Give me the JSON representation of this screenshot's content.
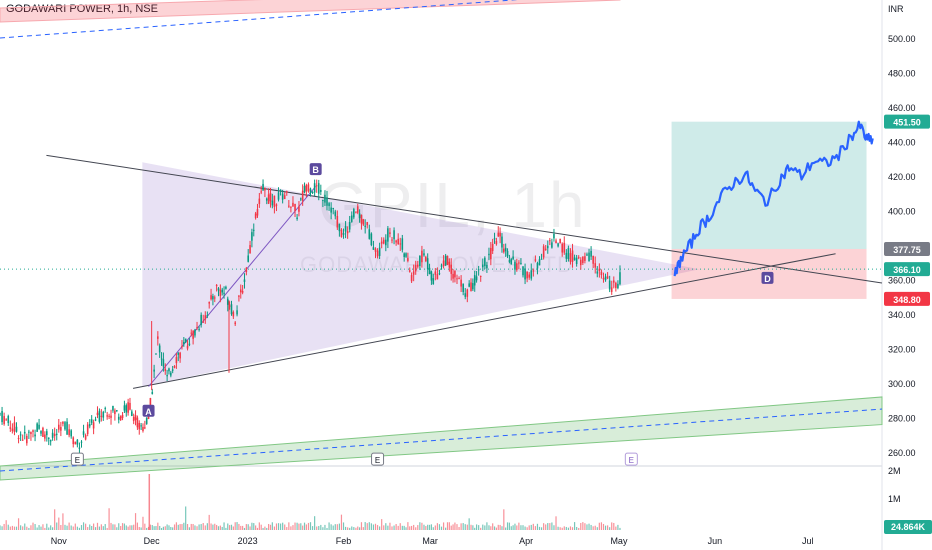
{
  "header": {
    "title": "GODAWARI POWER, 1h, NSE",
    "watermark_symbol": "GPIL, 1h",
    "watermark_name": "GODAWARI POWER LTD"
  },
  "chart_data": {
    "type": "candlestick-line",
    "currency": "INR",
    "y_ticks": [
      260,
      280,
      300,
      320,
      340,
      360,
      380,
      400,
      420,
      440,
      460,
      480,
      500
    ],
    "y_tick_labels": [
      "260.00",
      "280.00",
      "300.00",
      "320.00",
      "340.00",
      "360.00",
      "380.00",
      "400.00",
      "420.00",
      "440.00",
      "460.00",
      "480.00",
      "500.00"
    ],
    "ylim": [
      252,
      522
    ],
    "x_labels": [
      {
        "label": "Nov",
        "date": "2022-11-01"
      },
      {
        "label": "Dec",
        "date": "2022-12-01"
      },
      {
        "label": "2023",
        "date": "2023-01-01"
      },
      {
        "label": "Feb",
        "date": "2023-02-01"
      },
      {
        "label": "Mar",
        "date": "2023-03-01"
      },
      {
        "label": "Apr",
        "date": "2023-04-01"
      },
      {
        "label": "May",
        "date": "2023-05-01"
      },
      {
        "label": "Jun",
        "date": "2023-06-01"
      },
      {
        "label": "Jul",
        "date": "2023-07-01"
      }
    ],
    "price_path_historic": [
      [
        "2022-10-13",
        282
      ],
      [
        "2022-10-17",
        275
      ],
      [
        "2022-10-21",
        268
      ],
      [
        "2022-10-25",
        274
      ],
      [
        "2022-10-30",
        268
      ],
      [
        "2022-11-03",
        276
      ],
      [
        "2022-11-07",
        264
      ],
      [
        "2022-11-11",
        274
      ],
      [
        "2022-11-16",
        285
      ],
      [
        "2022-11-21",
        282
      ],
      [
        "2022-11-24",
        287
      ],
      [
        "2022-11-27",
        274
      ],
      [
        "2022-11-30",
        278
      ],
      [
        "2022-12-03",
        325
      ],
      [
        "2022-12-06",
        302
      ],
      [
        "2022-12-09",
        315
      ],
      [
        "2022-12-12",
        322
      ],
      [
        "2022-12-15",
        330
      ],
      [
        "2022-12-19",
        342
      ],
      [
        "2022-12-22",
        355
      ],
      [
        "2022-12-25",
        352
      ],
      [
        "2022-12-28",
        338
      ],
      [
        "2022-12-31",
        360
      ],
      [
        "2023-01-03",
        392
      ],
      [
        "2023-01-06",
        412
      ],
      [
        "2023-01-09",
        405
      ],
      [
        "2023-01-13",
        410
      ],
      [
        "2023-01-17",
        398
      ],
      [
        "2023-01-20",
        415
      ],
      [
        "2023-01-24",
        412
      ],
      [
        "2023-01-28",
        402
      ],
      [
        "2023-02-01",
        385
      ],
      [
        "2023-02-05",
        400
      ],
      [
        "2023-02-08",
        393
      ],
      [
        "2023-02-12",
        375
      ],
      [
        "2023-02-16",
        388
      ],
      [
        "2023-02-20",
        380
      ],
      [
        "2023-02-23",
        362
      ],
      [
        "2023-02-27",
        375
      ],
      [
        "2023-03-02",
        360
      ],
      [
        "2023-03-06",
        372
      ],
      [
        "2023-03-09",
        362
      ],
      [
        "2023-03-13",
        352
      ],
      [
        "2023-03-16",
        362
      ],
      [
        "2023-03-20",
        372
      ],
      [
        "2023-03-23",
        386
      ],
      [
        "2023-03-26",
        375
      ],
      [
        "2023-03-29",
        368
      ],
      [
        "2023-04-02",
        362
      ],
      [
        "2023-04-06",
        374
      ],
      [
        "2023-04-10",
        384
      ],
      [
        "2023-04-14",
        376
      ],
      [
        "2023-04-18",
        370
      ],
      [
        "2023-04-22",
        374
      ],
      [
        "2023-04-26",
        360
      ],
      [
        "2023-04-30",
        355
      ],
      [
        "2023-05-02",
        364
      ]
    ],
    "price_path_projection": [
      [
        "2023-05-19",
        362
      ],
      [
        "2023-05-21",
        372
      ],
      [
        "2023-05-24",
        380
      ],
      [
        "2023-05-27",
        390
      ],
      [
        "2023-05-30",
        396
      ],
      [
        "2023-06-03",
        408
      ],
      [
        "2023-06-07",
        416
      ],
      [
        "2023-06-11",
        421
      ],
      [
        "2023-06-14",
        411
      ],
      [
        "2023-06-18",
        405
      ],
      [
        "2023-06-22",
        418
      ],
      [
        "2023-06-25",
        425
      ],
      [
        "2023-06-29",
        420
      ],
      [
        "2023-07-03",
        429
      ],
      [
        "2023-07-07",
        427
      ],
      [
        "2023-07-11",
        432
      ],
      [
        "2023-07-15",
        443
      ],
      [
        "2023-07-18",
        449
      ],
      [
        "2023-07-20",
        441
      ],
      [
        "2023-07-22",
        441
      ]
    ],
    "triangle": {
      "A": [
        "2022-11-30",
        298
      ],
      "B": [
        "2023-01-23",
        414
      ],
      "apex": [
        "2023-05-27",
        366
      ]
    },
    "pattern_labels": [
      "A",
      "B",
      "D"
    ],
    "position": {
      "entry": 377.75,
      "target": 451.5,
      "stop": 348.8,
      "last": 366.1
    },
    "price_badges": {
      "target": "451.50",
      "entry": "377.75",
      "last": "366.10",
      "stop": "348.80"
    },
    "volume_ticks": [
      "2M",
      "1M"
    ],
    "volume_badge": "24.864K",
    "event_markers": [
      "E",
      "E",
      "E"
    ]
  },
  "colors": {
    "teal_zone": "rgba(38,166,154,0.22)",
    "red_zone": "rgba(242,54,69,0.22)",
    "triangle_fill": "rgba(126,87,194,0.18)",
    "up_candle": "#089981",
    "down_candle": "#f23645",
    "projection_line": "#2962ff",
    "badge_green": "#22ab94",
    "badge_red": "#f23645",
    "badge_grey": "#787b86"
  }
}
